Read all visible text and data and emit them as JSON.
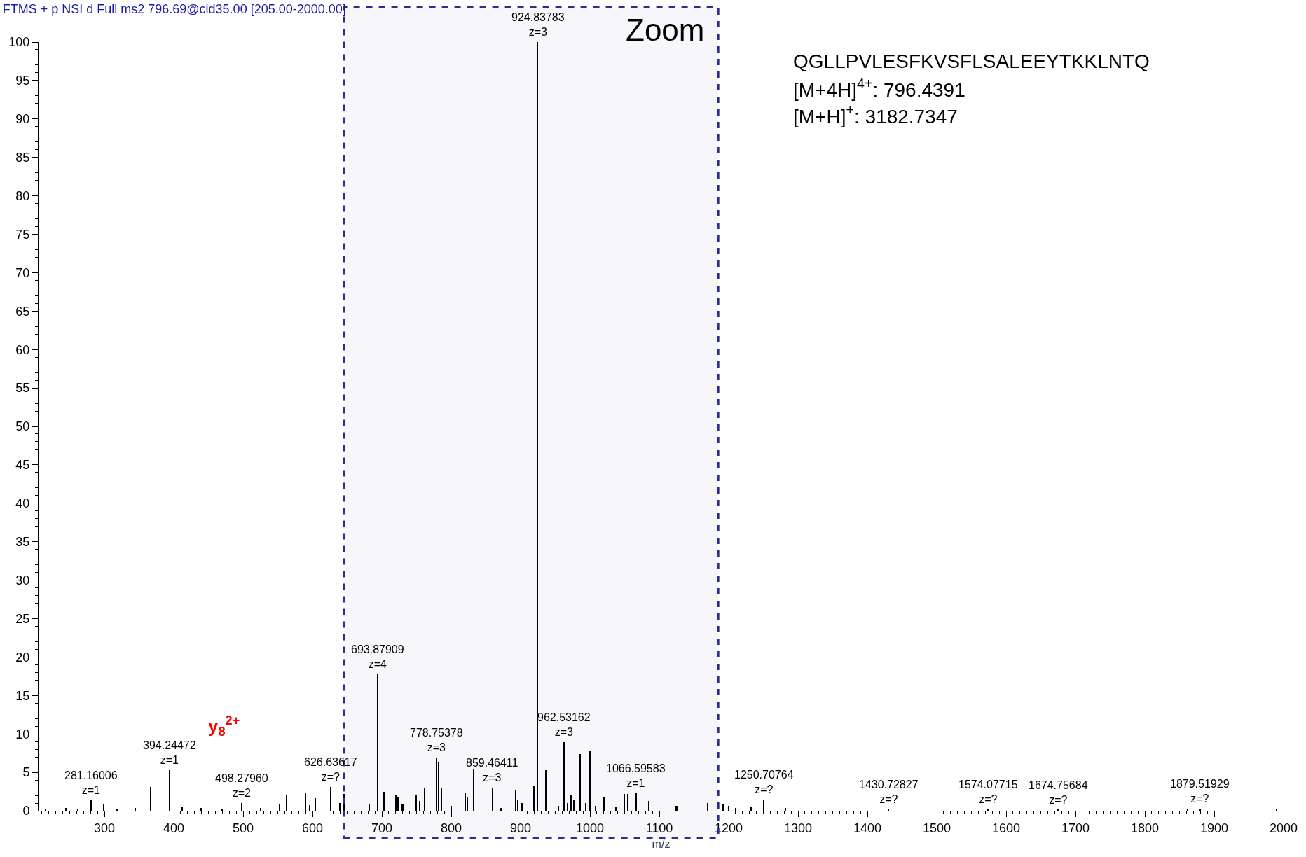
{
  "chart_data": {
    "type": "bar",
    "title": "FTMS + p NSI d Full ms2 796.69@cid35.00 [205.00-2000.00]",
    "xlabel": "m/z",
    "x": [
      215,
      245,
      262,
      281.16006,
      299,
      318,
      345,
      367,
      394.24472,
      412,
      440,
      470,
      498.2796,
      525,
      553,
      563,
      590,
      596,
      604,
      626.63617,
      640,
      646,
      682,
      693.87909,
      703,
      720,
      723,
      730,
      750,
      755,
      762,
      778.75378,
      782,
      786,
      800,
      820,
      823,
      833,
      859.46411,
      872,
      893,
      896,
      902,
      919,
      924.83783,
      937,
      955,
      962.53162,
      968,
      973,
      977,
      986,
      994,
      1000,
      1008,
      1020,
      1038,
      1050,
      1055,
      1066.59583,
      1085,
      1125,
      1170,
      1192,
      1200,
      1210,
      1233,
      1250.70764,
      1282,
      1430.72827,
      1574.07715,
      1674.75684,
      1862,
      1879.51929,
      1990
    ],
    "values": [
      0.3,
      0.4,
      0.3,
      1.4,
      0.9,
      0.3,
      0.4,
      3.1,
      5.3,
      0.5,
      0.4,
      0.3,
      1.0,
      0.4,
      0.8,
      2.0,
      2.4,
      0.7,
      1.6,
      3.1,
      1.0,
      2.2,
      0.8,
      17.8,
      2.5,
      2.0,
      1.8,
      0.8,
      2.0,
      1.3,
      2.9,
      6.9,
      6.3,
      3.0,
      0.6,
      2.3,
      1.8,
      5.5,
      3.0,
      0.4,
      2.6,
      1.5,
      1.0,
      3.2,
      100,
      5.3,
      0.6,
      8.9,
      1.0,
      2.0,
      1.4,
      7.4,
      1.0,
      7.8,
      0.6,
      1.8,
      0.5,
      2.2,
      2.2,
      2.3,
      1.3,
      0.6,
      1.0,
      0.8,
      0.6,
      0.4,
      0.5,
      1.5,
      0.4,
      0.2,
      0.2,
      0.1,
      0.3,
      0.3,
      0.2
    ],
    "color": "#000000",
    "xlim": [
      205,
      2000
    ],
    "xticks": [
      300,
      400,
      500,
      600,
      700,
      800,
      900,
      1000,
      1100,
      1200,
      1300,
      1400,
      1500,
      1600,
      1700,
      1800,
      1900,
      2000
    ],
    "ylim": [
      0,
      100
    ],
    "yticks": [
      0,
      5,
      10,
      15,
      20,
      25,
      30,
      35,
      40,
      45,
      50,
      55,
      60,
      65,
      70,
      75,
      80,
      85,
      90,
      95,
      100
    ],
    "grid": false,
    "bands": [
      {
        "axis": "x",
        "from": 645,
        "to": 1185,
        "label": "Zoom",
        "color": "#2a2f8f"
      }
    ],
    "annotations": [
      {
        "text": "281.16006\nz=1",
        "x": 281.16006,
        "y": 1.4
      },
      {
        "text": "394.24472\nz=1",
        "x": 394.24472,
        "y": 5.3
      },
      {
        "text": "498.27960\nz=2",
        "x": 498.2796,
        "y": 1.0
      },
      {
        "text": "626.63617\nz=?",
        "x": 626.63617,
        "y": 3.1
      },
      {
        "text": "693.87909\nz=4",
        "x": 693.87909,
        "y": 17.8
      },
      {
        "text": "778.75378\nz=3",
        "x": 778.75378,
        "y": 6.9
      },
      {
        "text": "859.46411\nz=3",
        "x": 859.46411,
        "y": 3.0
      },
      {
        "text": "924.83783\nz=3",
        "x": 924.83783,
        "y": 100
      },
      {
        "text": "962.53162\nz=3",
        "x": 962.53162,
        "y": 8.9
      },
      {
        "text": "1066.59583\nz=1",
        "x": 1066.59583,
        "y": 2.3
      },
      {
        "text": "1250.70764\nz=?",
        "x": 1250.70764,
        "y": 1.5
      },
      {
        "text": "1430.72827\nz=?",
        "x": 1430.72827,
        "y": 0.2
      },
      {
        "text": "1574.07715\nz=?",
        "x": 1574.07715,
        "y": 0.2
      },
      {
        "text": "1674.75684\nz=?",
        "x": 1674.75684,
        "y": 0.1
      },
      {
        "text": "1879.51929\nz=?",
        "x": 1879.51929,
        "y": 0.3
      },
      "y$_{8}$$^{2+}$",
      "QGLLPVLESFKVSFLSALEEYTKKLNTQ",
      "[M+4H]$^{4+}$: 796.4391",
      "[M+H]$^{+}$: 3182.7347"
    ]
  }
}
